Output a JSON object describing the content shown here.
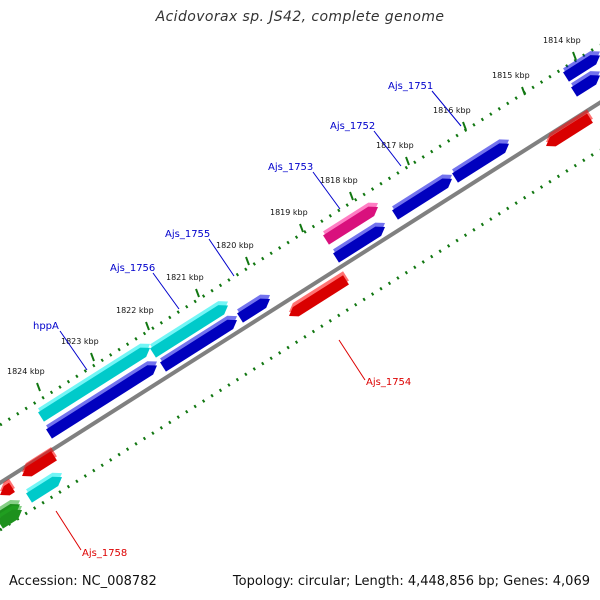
{
  "title": "Acidovorax sp. JS42, complete genome",
  "footer": {
    "accession": "Accession: NC_008782",
    "summary": "Topology: circular; Length: 4,448,856 bp; Genes: 4,069"
  },
  "ticks": [
    "1814 kbp",
    "1815 kbp",
    "1816 kbp",
    "1817 kbp",
    "1818 kbp",
    "1819 kbp",
    "1820 kbp",
    "1821 kbp",
    "1822 kbp",
    "1823 kbp",
    "1824 kbp"
  ],
  "gene_labels": {
    "ajs_1751": "Ajs_1751",
    "ajs_1752": "Ajs_1752",
    "ajs_1753": "Ajs_1753",
    "ajs_1755": "Ajs_1755",
    "ajs_1756": "Ajs_1756",
    "hppa": "hppA",
    "ajs_1754": "Ajs_1754",
    "ajs_1758": "Ajs_1758"
  },
  "colors": {
    "cds_forward": "#0000e0",
    "cds_reverse": "#ff0000",
    "highlight_cyan": "#00eeee",
    "highlight_magenta": "#ff1493",
    "rna_green": "#22aa22",
    "backbone": "#808080",
    "label_blue": "#0000cc",
    "label_red": "#dd0000",
    "tick_green": "#006600"
  }
}
